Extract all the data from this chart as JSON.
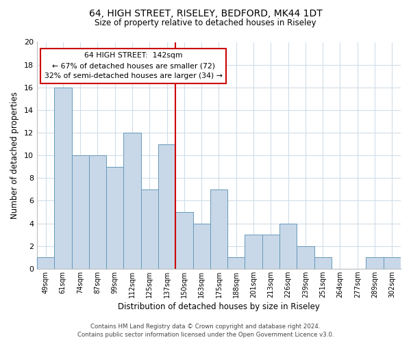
{
  "title": "64, HIGH STREET, RISELEY, BEDFORD, MK44 1DT",
  "subtitle": "Size of property relative to detached houses in Riseley",
  "xlabel": "Distribution of detached houses by size in Riseley",
  "ylabel": "Number of detached properties",
  "bar_labels": [
    "49sqm",
    "61sqm",
    "74sqm",
    "87sqm",
    "99sqm",
    "112sqm",
    "125sqm",
    "137sqm",
    "150sqm",
    "163sqm",
    "175sqm",
    "188sqm",
    "201sqm",
    "213sqm",
    "226sqm",
    "239sqm",
    "251sqm",
    "264sqm",
    "277sqm",
    "289sqm",
    "302sqm"
  ],
  "bar_values": [
    1,
    16,
    10,
    10,
    9,
    12,
    7,
    11,
    5,
    4,
    7,
    1,
    3,
    3,
    4,
    2,
    1,
    0,
    0,
    1,
    1
  ],
  "bar_color": "#c8d8e8",
  "bar_edge_color": "#6699bb",
  "property_line_x": 7.5,
  "annotation_title": "64 HIGH STREET:  142sqm",
  "annotation_line1": "← 67% of detached houses are smaller (72)",
  "annotation_line2": "32% of semi-detached houses are larger (34) →",
  "annotation_box_color": "#ffffff",
  "annotation_box_edge_color": "#cc0000",
  "line_color": "#cc0000",
  "ylim": [
    0,
    20
  ],
  "yticks": [
    0,
    2,
    4,
    6,
    8,
    10,
    12,
    14,
    16,
    18,
    20
  ],
  "grid_color": "#d0dde8",
  "footer_line1": "Contains HM Land Registry data © Crown copyright and database right 2024.",
  "footer_line2": "Contains public sector information licensed under the Open Government Licence v3.0."
}
